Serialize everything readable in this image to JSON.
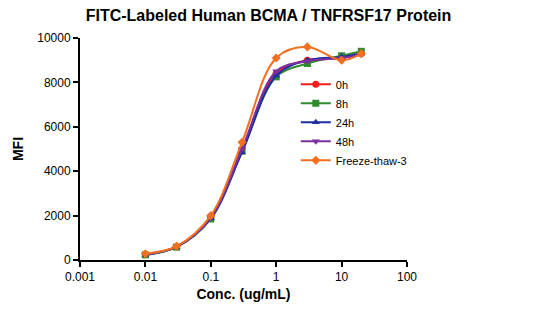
{
  "chart_data": {
    "type": "scatter",
    "title": "FITC-Labeled Human BCMA / TNFRSF17 Protein",
    "x_label": "Conc. (ug/mL)",
    "y_label": "MFI",
    "x": [
      0.01,
      0.03,
      0.1,
      0.3,
      1,
      3,
      10,
      20
    ],
    "series": [
      {
        "name": "0h",
        "color": "#ee1c1c",
        "marker": "circle",
        "line_style": "solid",
        "values": [
          250,
          600,
          1900,
          5000,
          8400,
          9000,
          9100,
          9300
        ]
      },
      {
        "name": "8h",
        "color": "#2e8b2e",
        "marker": "square",
        "line_style": "solid",
        "values": [
          230,
          580,
          1850,
          4900,
          8250,
          8850,
          9200,
          9400
        ]
      },
      {
        "name": "24h",
        "color": "#1f2f9f",
        "marker": "triangle-up",
        "line_style": "solid",
        "values": [
          240,
          590,
          1880,
          4850,
          8300,
          9000,
          9150,
          9300
        ]
      },
      {
        "name": "48h",
        "color": "#7b2fa0",
        "marker": "triangle-down",
        "line_style": "solid",
        "values": [
          260,
          600,
          1900,
          5000,
          8500,
          8950,
          9100,
          9250
        ]
      },
      {
        "name": "Freeze-thaw-3",
        "color": "#f07020",
        "marker": "diamond",
        "line_style": "solid",
        "values": [
          280,
          620,
          2000,
          5300,
          9100,
          9600,
          9000,
          9300
        ]
      }
    ],
    "log": "x",
    "xlim": [
      0.001,
      100
    ],
    "xticks": [
      0.001,
      0.01,
      0.1,
      1,
      10,
      100
    ],
    "ylim": [
      0,
      10000
    ],
    "yticks": [
      0,
      2000,
      4000,
      6000,
      8000,
      10000
    ],
    "grid": false,
    "legend": "right"
  }
}
